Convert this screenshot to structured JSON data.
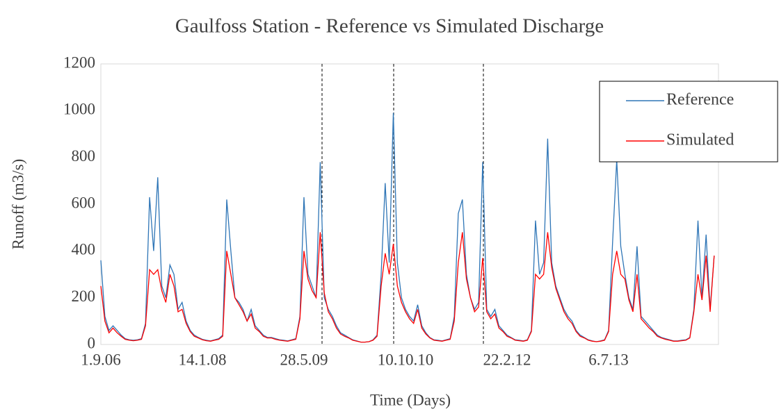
{
  "chart_data": {
    "type": "line",
    "title": "Gaulfoss Station - Reference vs Simulated Discharge",
    "x_label": "Time (Days)",
    "y_label": "Runoff (m3/s)",
    "categories": [
      "1.9.06",
      null,
      null,
      null,
      null,
      null,
      null,
      null,
      null,
      null,
      null,
      null,
      null,
      null,
      null,
      null,
      null,
      null,
      null,
      null,
      null,
      null,
      null,
      null,
      null,
      "14.1.08",
      null,
      null,
      null,
      null,
      null,
      null,
      null,
      null,
      null,
      null,
      null,
      null,
      null,
      null,
      null,
      null,
      null,
      null,
      null,
      null,
      null,
      null,
      null,
      null,
      "28.5.09",
      null,
      null,
      null,
      null,
      null,
      null,
      null,
      null,
      null,
      null,
      null,
      null,
      null,
      null,
      null,
      null,
      null,
      null,
      null,
      null,
      null,
      null,
      null,
      null,
      "10.10.10",
      null,
      null,
      null,
      null,
      null,
      null,
      null,
      null,
      null,
      null,
      null,
      null,
      null,
      null,
      null,
      null,
      null,
      null,
      null,
      null,
      null,
      null,
      null,
      null,
      "22.2.12",
      null,
      null,
      null,
      null,
      null,
      null,
      null,
      null,
      null,
      null,
      null,
      null,
      null,
      null,
      null,
      null,
      null,
      null,
      null,
      null,
      null,
      null,
      null,
      null,
      "6.7.13",
      null,
      null,
      null,
      null,
      null,
      null,
      null,
      null,
      null,
      null,
      null,
      null,
      null,
      null,
      null,
      null,
      null,
      null,
      null,
      null,
      null,
      null,
      null,
      null,
      null,
      null
    ],
    "series": [
      {
        "name": "Reference",
        "color": "#2e75b6",
        "values": [
          360,
          120,
          60,
          80,
          60,
          40,
          25,
          20,
          18,
          20,
          25,
          90,
          630,
          400,
          715,
          250,
          200,
          340,
          300,
          150,
          180,
          100,
          60,
          40,
          30,
          22,
          18,
          15,
          20,
          25,
          40,
          620,
          400,
          200,
          180,
          150,
          100,
          150,
          80,
          60,
          40,
          30,
          30,
          25,
          20,
          18,
          15,
          20,
          25,
          120,
          630,
          300,
          250,
          200,
          780,
          200,
          150,
          120,
          80,
          50,
          40,
          30,
          20,
          15,
          10,
          10,
          12,
          20,
          40,
          300,
          690,
          350,
          990,
          350,
          200,
          150,
          120,
          100,
          170,
          80,
          50,
          30,
          20,
          18,
          15,
          20,
          25,
          120,
          560,
          620,
          300,
          200,
          150,
          180,
          780,
          150,
          120,
          150,
          80,
          60,
          40,
          30,
          20,
          18,
          15,
          20,
          60,
          530,
          300,
          350,
          880,
          350,
          250,
          200,
          150,
          120,
          100,
          60,
          40,
          30,
          20,
          15,
          12,
          15,
          20,
          60,
          440,
          790,
          420,
          300,
          200,
          150,
          420,
          120,
          100,
          80,
          60,
          40,
          30,
          25,
          20,
          15,
          15,
          18,
          20,
          30,
          150,
          530,
          200,
          470,
          150,
          380
        ]
      },
      {
        "name": "Simulated",
        "color": "#ff0000",
        "values": [
          250,
          100,
          50,
          70,
          50,
          35,
          22,
          18,
          16,
          18,
          22,
          80,
          320,
          300,
          320,
          230,
          180,
          300,
          250,
          140,
          150,
          90,
          55,
          35,
          28,
          20,
          16,
          14,
          18,
          22,
          35,
          400,
          300,
          200,
          170,
          140,
          100,
          130,
          70,
          55,
          35,
          28,
          28,
          22,
          18,
          16,
          14,
          18,
          22,
          110,
          400,
          280,
          230,
          200,
          480,
          220,
          140,
          110,
          70,
          45,
          35,
          28,
          18,
          14,
          10,
          10,
          12,
          18,
          35,
          250,
          390,
          300,
          430,
          250,
          180,
          140,
          110,
          90,
          150,
          70,
          45,
          28,
          18,
          16,
          14,
          18,
          22,
          100,
          350,
          480,
          280,
          200,
          140,
          160,
          370,
          140,
          110,
          130,
          70,
          55,
          35,
          28,
          18,
          16,
          14,
          18,
          55,
          300,
          280,
          300,
          480,
          330,
          240,
          190,
          140,
          110,
          90,
          55,
          35,
          28,
          18,
          14,
          12,
          14,
          18,
          55,
          300,
          400,
          300,
          280,
          190,
          140,
          300,
          110,
          90,
          70,
          55,
          35,
          28,
          22,
          18,
          14,
          14,
          16,
          18,
          28,
          140,
          300,
          190,
          380,
          140,
          380
        ]
      }
    ],
    "ylim": [
      0,
      1200
    ],
    "yticks": [
      0,
      200,
      400,
      600,
      800,
      1000,
      1200
    ],
    "grid": false,
    "legend": "upper right"
  }
}
